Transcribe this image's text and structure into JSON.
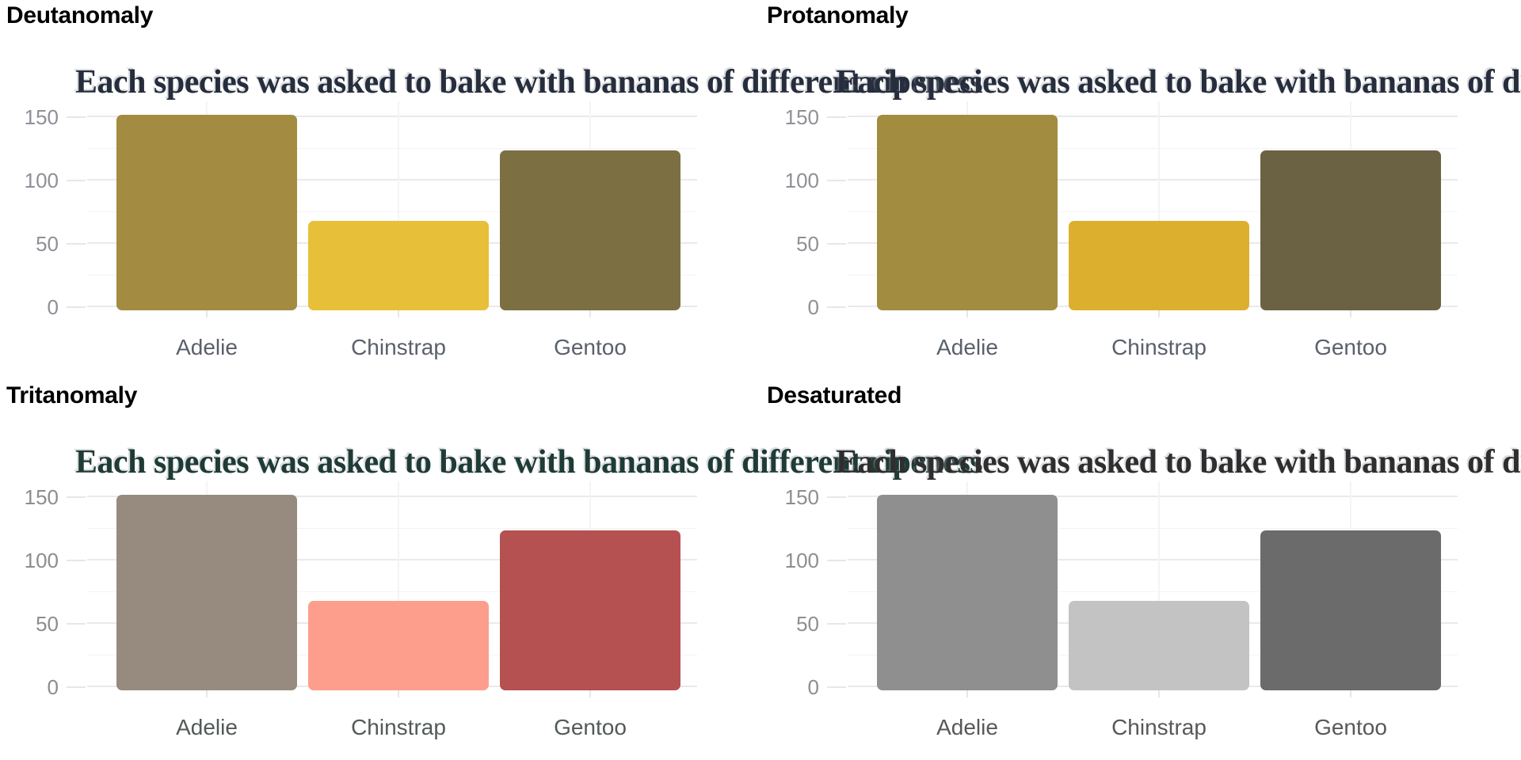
{
  "figure": {
    "background": "#ffffff",
    "grid_major_color": "#e9e9ee",
    "grid_minor_color": "#f4f4f6",
    "tick_mark_color": "#e6e6ec",
    "panel_title_color": "#000000"
  },
  "chart_data": {
    "type": "bar",
    "title": "Each species was asked to bake with bananas of different ripeness",
    "categories": [
      "Adelie",
      "Chinstrap",
      "Gentoo"
    ],
    "values": [
      152,
      68,
      124
    ],
    "xlabel": "",
    "ylabel": "",
    "ylim": [
      0,
      160
    ],
    "yticks": [
      0,
      50,
      100,
      150
    ],
    "ytick_labels": [
      "0",
      "50",
      "100",
      "150"
    ],
    "legend": "none",
    "grid": "horizontal major+minor, vertical major at category centers",
    "layout": "2x2 grid of color-vision-deficiency simulations of the same bar chart; long titles overflow and overlap the neighboring panel",
    "panels": [
      {
        "label": "Deutanomaly",
        "title_color": "#262d3c",
        "tick_label_color": "#8f8f98",
        "category_label_color": "#5a606b",
        "bar_colors": [
          "#a38c41",
          "#e7bf39",
          "#7c7042"
        ]
      },
      {
        "label": "Protanomaly",
        "title_color": "#262d3c",
        "tick_label_color": "#8f8f98",
        "category_label_color": "#5a606b",
        "bar_colors": [
          "#a28c3f",
          "#dcaf2e",
          "#6b6243"
        ]
      },
      {
        "label": "Tritanomaly",
        "title_color": "#1f3b35",
        "tick_label_color": "#8d8d8d",
        "category_label_color": "#515a58",
        "bar_colors": [
          "#968b7e",
          "#fd9e8c",
          "#b55150"
        ]
      },
      {
        "label": "Desaturated",
        "title_color": "#2e2e2e",
        "tick_label_color": "#8e8e8e",
        "category_label_color": "#585858",
        "bar_colors": [
          "#8f8f8f",
          "#c3c3c3",
          "#6b6b6b"
        ]
      }
    ]
  }
}
